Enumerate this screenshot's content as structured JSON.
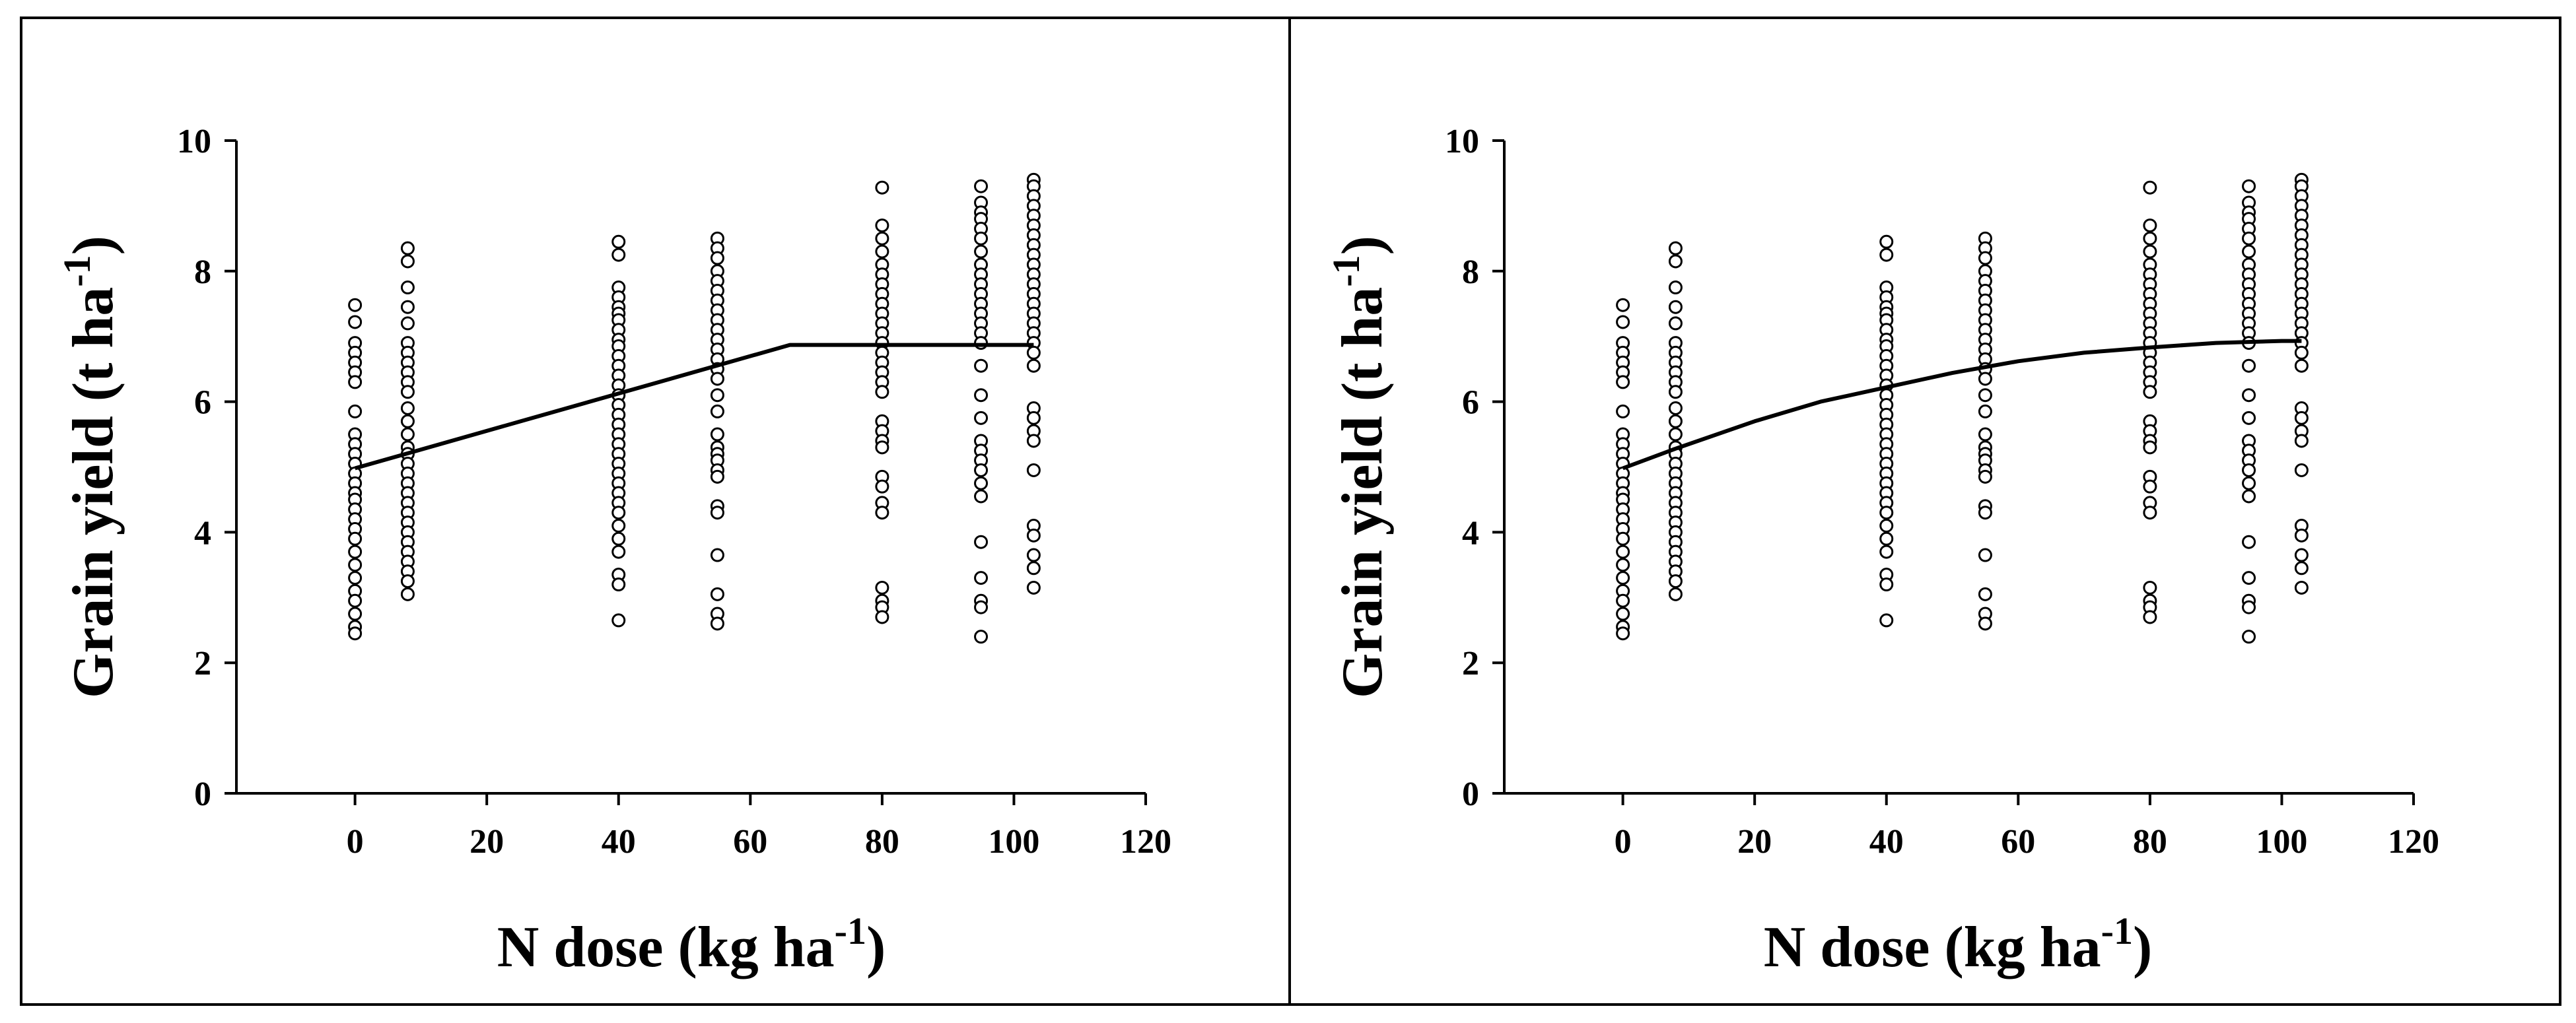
{
  "chart_data": [
    {
      "type": "scatter",
      "xlabel": "N dose (kg ha",
      "xlabel_sup": "-1",
      "xlabel_end": ")",
      "ylabel": "Grain yield (t ha",
      "ylabel_sup": "-1",
      "ylabel_end": ")",
      "xlim": [
        -18,
        120
      ],
      "ylim": [
        0,
        10
      ],
      "xticks": [
        0,
        20,
        40,
        60,
        80,
        100,
        120
      ],
      "yticks": [
        0,
        2,
        4,
        6,
        8,
        10
      ],
      "grid": false,
      "legend": "none",
      "scatter_groups": [
        {
          "x": 0,
          "y": [
            7.48,
            7.22,
            6.9,
            6.75,
            6.6,
            6.45,
            6.3,
            5.85,
            5.5,
            5.35,
            5.2,
            5.05,
            4.9,
            4.75,
            4.6,
            4.5,
            4.35,
            4.2,
            4.05,
            3.9,
            3.7,
            3.5,
            3.3,
            3.1,
            2.95,
            2.75,
            2.55,
            2.45
          ]
        },
        {
          "x": 8,
          "y": [
            8.35,
            8.15,
            7.75,
            7.45,
            7.2,
            6.9,
            6.75,
            6.6,
            6.45,
            6.3,
            6.15,
            5.9,
            5.7,
            5.5,
            5.3,
            5.2,
            5.05,
            4.9,
            4.75,
            4.6,
            4.45,
            4.3,
            4.15,
            4.0,
            3.85,
            3.7,
            3.55,
            3.4,
            3.25,
            3.05
          ]
        },
        {
          "x": 40,
          "y": [
            8.45,
            8.25,
            7.75,
            7.6,
            7.45,
            7.35,
            7.25,
            7.1,
            6.95,
            6.85,
            6.7,
            6.55,
            6.4,
            6.25,
            6.1,
            5.95,
            5.8,
            5.65,
            5.5,
            5.35,
            5.2,
            5.05,
            4.9,
            4.75,
            4.6,
            4.45,
            4.3,
            4.1,
            3.9,
            3.7,
            3.35,
            3.2,
            2.65
          ]
        },
        {
          "x": 55,
          "y": [
            8.5,
            8.35,
            8.2,
            8.0,
            7.85,
            7.7,
            7.55,
            7.4,
            7.25,
            7.1,
            6.95,
            6.8,
            6.65,
            6.5,
            6.35,
            6.1,
            5.85,
            5.5,
            5.3,
            5.2,
            5.1,
            4.95,
            4.85,
            4.4,
            4.3,
            3.65,
            3.05,
            2.75,
            2.6
          ]
        },
        {
          "x": 80,
          "y": [
            9.28,
            8.7,
            8.5,
            8.3,
            8.1,
            7.95,
            7.8,
            7.65,
            7.5,
            7.35,
            7.2,
            7.05,
            6.9,
            6.75,
            6.6,
            6.45,
            6.3,
            6.15,
            5.7,
            5.55,
            5.4,
            5.3,
            4.85,
            4.7,
            4.45,
            4.3,
            3.15,
            2.95,
            2.85,
            2.7
          ]
        },
        {
          "x": 95,
          "y": [
            9.3,
            9.05,
            8.9,
            8.8,
            8.65,
            8.5,
            8.3,
            8.1,
            7.95,
            7.8,
            7.65,
            7.5,
            7.35,
            7.2,
            7.05,
            6.9,
            6.55,
            6.1,
            5.75,
            5.4,
            5.25,
            5.1,
            4.95,
            4.75,
            4.55,
            3.85,
            3.3,
            2.95,
            2.85,
            2.4
          ]
        },
        {
          "x": 103,
          "y": [
            9.4,
            9.3,
            9.15,
            9.0,
            8.85,
            8.7,
            8.55,
            8.4,
            8.25,
            8.1,
            7.95,
            7.8,
            7.65,
            7.5,
            7.35,
            7.2,
            7.05,
            6.9,
            6.75,
            6.55,
            5.9,
            5.75,
            5.55,
            5.4,
            4.95,
            4.1,
            3.95,
            3.65,
            3.45,
            3.15
          ]
        }
      ],
      "fit": {
        "type": "linear-plateau",
        "points": [
          [
            0,
            4.98
          ],
          [
            66,
            6.87
          ],
          [
            103,
            6.87
          ]
        ]
      }
    },
    {
      "type": "scatter",
      "xlabel": "N dose (kg ha",
      "xlabel_sup": "-1",
      "xlabel_end": ")",
      "ylabel": "Grain yield (t ha",
      "ylabel_sup": "-1",
      "ylabel_end": ")",
      "xlim": [
        -18,
        120
      ],
      "ylim": [
        0,
        10
      ],
      "xticks": [
        0,
        20,
        40,
        60,
        80,
        100,
        120
      ],
      "yticks": [
        0,
        2,
        4,
        6,
        8,
        10
      ],
      "grid": false,
      "legend": "none",
      "scatter_groups": [
        {
          "x": 0,
          "y": [
            7.48,
            7.22,
            6.9,
            6.75,
            6.6,
            6.45,
            6.3,
            5.85,
            5.5,
            5.35,
            5.2,
            5.05,
            4.9,
            4.75,
            4.6,
            4.5,
            4.35,
            4.2,
            4.05,
            3.9,
            3.7,
            3.5,
            3.3,
            3.1,
            2.95,
            2.75,
            2.55,
            2.45
          ]
        },
        {
          "x": 8,
          "y": [
            8.35,
            8.15,
            7.75,
            7.45,
            7.2,
            6.9,
            6.75,
            6.6,
            6.45,
            6.3,
            6.15,
            5.9,
            5.7,
            5.5,
            5.3,
            5.2,
            5.05,
            4.9,
            4.75,
            4.6,
            4.45,
            4.3,
            4.15,
            4.0,
            3.85,
            3.7,
            3.55,
            3.4,
            3.25,
            3.05
          ]
        },
        {
          "x": 40,
          "y": [
            8.45,
            8.25,
            7.75,
            7.6,
            7.45,
            7.35,
            7.25,
            7.1,
            6.95,
            6.85,
            6.7,
            6.55,
            6.4,
            6.25,
            6.1,
            5.95,
            5.8,
            5.65,
            5.5,
            5.35,
            5.2,
            5.05,
            4.9,
            4.75,
            4.6,
            4.45,
            4.3,
            4.1,
            3.9,
            3.7,
            3.35,
            3.2,
            2.65
          ]
        },
        {
          "x": 55,
          "y": [
            8.5,
            8.35,
            8.2,
            8.0,
            7.85,
            7.7,
            7.55,
            7.4,
            7.25,
            7.1,
            6.95,
            6.8,
            6.65,
            6.5,
            6.35,
            6.1,
            5.85,
            5.5,
            5.3,
            5.2,
            5.1,
            4.95,
            4.85,
            4.4,
            4.3,
            3.65,
            3.05,
            2.75,
            2.6
          ]
        },
        {
          "x": 80,
          "y": [
            9.28,
            8.7,
            8.5,
            8.3,
            8.1,
            7.95,
            7.8,
            7.65,
            7.5,
            7.35,
            7.2,
            7.05,
            6.9,
            6.75,
            6.6,
            6.45,
            6.3,
            6.15,
            5.7,
            5.55,
            5.4,
            5.3,
            4.85,
            4.7,
            4.45,
            4.3,
            3.15,
            2.95,
            2.85,
            2.7
          ]
        },
        {
          "x": 95,
          "y": [
            9.3,
            9.05,
            8.9,
            8.8,
            8.65,
            8.5,
            8.3,
            8.1,
            7.95,
            7.8,
            7.65,
            7.5,
            7.35,
            7.2,
            7.05,
            6.9,
            6.55,
            6.1,
            5.75,
            5.4,
            5.25,
            5.1,
            4.95,
            4.75,
            4.55,
            3.85,
            3.3,
            2.95,
            2.85,
            2.4
          ]
        },
        {
          "x": 103,
          "y": [
            9.4,
            9.3,
            9.15,
            9.0,
            8.85,
            8.7,
            8.55,
            8.4,
            8.25,
            8.1,
            7.95,
            7.8,
            7.65,
            7.5,
            7.35,
            7.2,
            7.05,
            6.9,
            6.75,
            6.55,
            5.9,
            5.75,
            5.55,
            5.4,
            4.95,
            4.1,
            3.95,
            3.65,
            3.45,
            3.15
          ]
        }
      ],
      "fit": {
        "type": "quadratic",
        "points": [
          [
            0,
            4.98
          ],
          [
            8,
            5.28
          ],
          [
            20,
            5.7
          ],
          [
            30,
            6.0
          ],
          [
            40,
            6.22
          ],
          [
            50,
            6.44
          ],
          [
            60,
            6.62
          ],
          [
            70,
            6.75
          ],
          [
            80,
            6.83
          ],
          [
            90,
            6.9
          ],
          [
            100,
            6.93
          ],
          [
            103,
            6.93
          ]
        ]
      }
    }
  ]
}
